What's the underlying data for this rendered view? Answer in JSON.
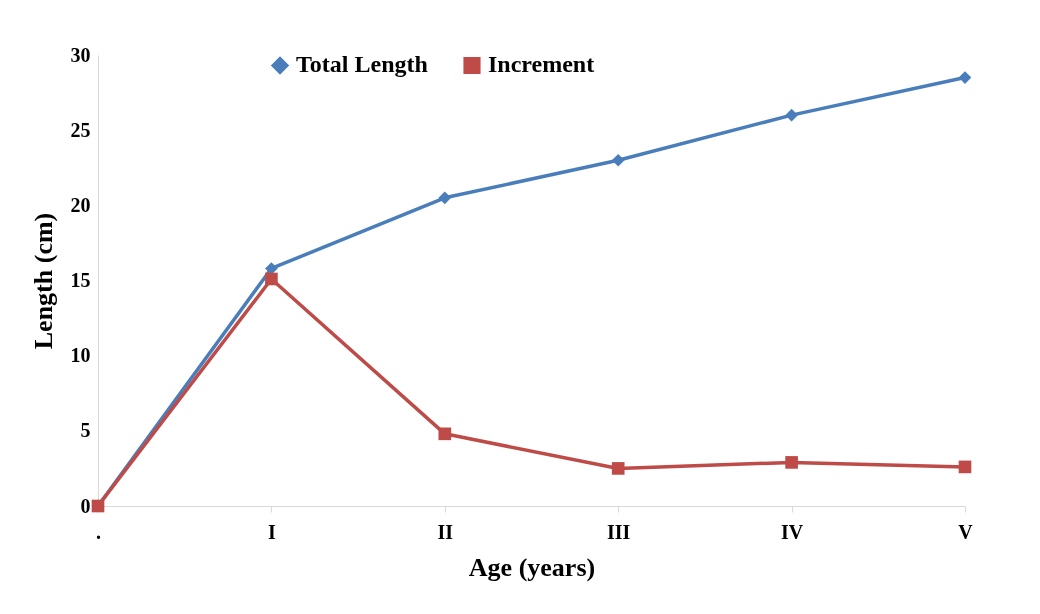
{
  "chart_data": {
    "type": "line",
    "xlabel": "Age (years)",
    "ylabel": "Length (cm)",
    "categories": [
      ".",
      "I",
      "II",
      "III",
      "IV",
      "V"
    ],
    "series": [
      {
        "name": "Total Length",
        "color": "#4a7ebb",
        "marker": "diamond",
        "values": [
          0,
          15.8,
          20.5,
          23.0,
          26.0,
          28.5
        ]
      },
      {
        "name": "Increment",
        "color": "#be4b48",
        "marker": "square",
        "values": [
          0,
          15.1,
          4.8,
          2.5,
          2.9,
          2.6
        ]
      }
    ],
    "ylim": [
      0,
      30
    ],
    "yticks": [
      0,
      5,
      10,
      15,
      20,
      25,
      30
    ],
    "grid": false,
    "legend": "top",
    "line_style": "solid"
  }
}
